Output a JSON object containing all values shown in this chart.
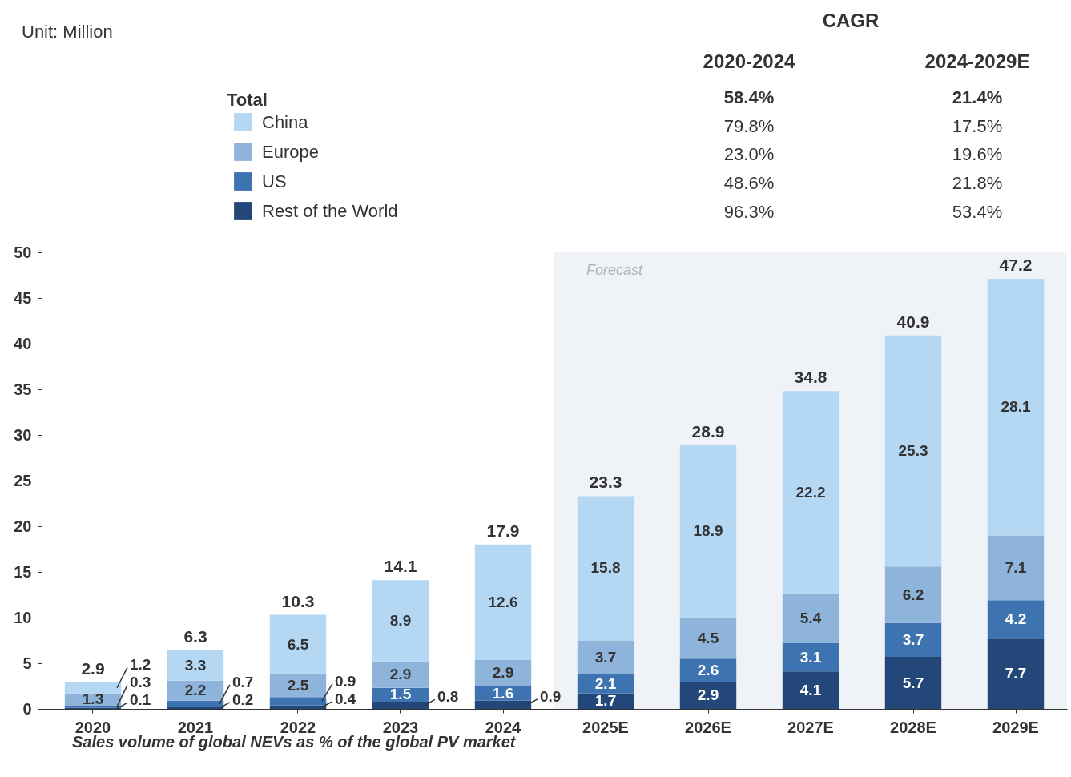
{
  "chart_data": {
    "type": "bar",
    "stacked": true,
    "categories": [
      "2020",
      "2021",
      "2022",
      "2023",
      "2024",
      "2025E",
      "2026E",
      "2027E",
      "2028E",
      "2029E"
    ],
    "series": [
      {
        "name": "Rest of the World",
        "color": "#24477a",
        "values": [
          0.1,
          0.2,
          0.4,
          0.8,
          0.9,
          1.7,
          2.9,
          4.1,
          5.7,
          7.7
        ]
      },
      {
        "name": "US",
        "color": "#3d73b0",
        "values": [
          0.3,
          0.7,
          0.9,
          1.5,
          1.6,
          2.1,
          2.6,
          3.1,
          3.7,
          4.2
        ]
      },
      {
        "name": "Europe",
        "color": "#8fb4dc",
        "values": [
          1.3,
          2.2,
          2.5,
          2.9,
          2.9,
          3.7,
          4.5,
          5.4,
          6.2,
          7.1
        ]
      },
      {
        "name": "China",
        "color": "#b4d7f4",
        "values": [
          1.2,
          3.3,
          6.5,
          8.9,
          12.6,
          15.8,
          18.9,
          22.2,
          25.3,
          28.1
        ]
      }
    ],
    "totals": [
      "2.9",
      "6.3",
      "10.3",
      "14.1",
      "17.9",
      "23.3",
      "28.9",
      "34.8",
      "40.9",
      "47.2"
    ],
    "data_labels": true,
    "ylim": [
      0,
      50
    ],
    "yticks": [
      0,
      5,
      10,
      15,
      20,
      25,
      30,
      35,
      40,
      45,
      50
    ],
    "grid": false,
    "legend": "top",
    "bands": [
      {
        "axis": "x",
        "from": "2025E",
        "to": "2029E",
        "label": "Forecast",
        "color": "#eff3f7"
      }
    ],
    "annotations": [
      "Unit: Million",
      "CAGR",
      "2020-2024",
      "2024-2029E",
      "Total",
      "58.4%",
      "21.4%",
      "79.8%",
      "17.5%",
      "23.0%",
      "19.6%",
      "48.6%",
      "21.8%",
      "96.3%",
      "53.4%",
      "Sales volume of global NEVs as % of the global PV market"
    ]
  }
}
